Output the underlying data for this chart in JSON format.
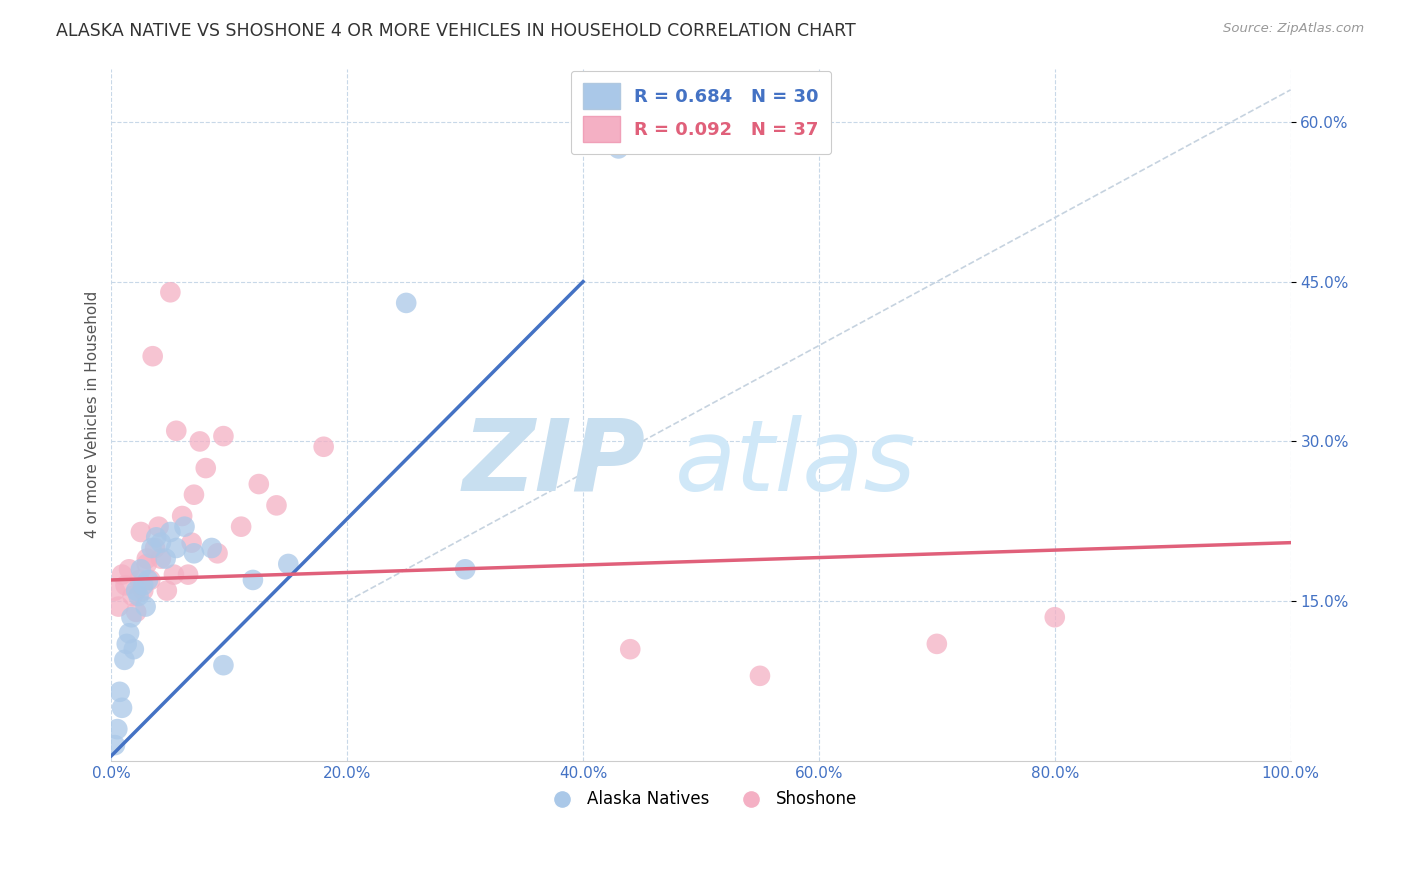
{
  "title": "ALASKA NATIVE VS SHOSHONE 4 OR MORE VEHICLES IN HOUSEHOLD CORRELATION CHART",
  "source_text": "Source: ZipAtlas.com",
  "ylabel": "4 or more Vehicles in Household",
  "xlim": [
    0,
    100
  ],
  "ylim": [
    0,
    65
  ],
  "xtick_values": [
    0,
    20,
    40,
    60,
    80,
    100
  ],
  "xtick_labels": [
    "0.0%",
    "20.0%",
    "40.0%",
    "60.0%",
    "80.0%",
    "100.0%"
  ],
  "ytick_values": [
    15,
    30,
    45,
    60
  ],
  "ytick_labels": [
    "15.0%",
    "30.0%",
    "45.0%",
    "60.0%"
  ],
  "legend_r1": "R = 0.684",
  "legend_n1": "N = 30",
  "legend_r2": "R = 0.092",
  "legend_n2": "N = 37",
  "legend_label1": "Alaska Natives",
  "legend_label2": "Shoshone",
  "color_alaska": "#aac8e8",
  "color_shoshone": "#f4b0c4",
  "color_line_alaska": "#4472c4",
  "color_line_shoshone": "#e0607a",
  "watermark_zip_color": "#c8dff0",
  "watermark_atlas_color": "#d0e8f8",
  "background_color": "#ffffff",
  "grid_color": "#c8d8e8",
  "alaska_x": [
    0.3,
    0.5,
    0.7,
    0.9,
    1.1,
    1.3,
    1.5,
    1.7,
    1.9,
    2.1,
    2.3,
    2.5,
    2.7,
    2.9,
    3.1,
    3.4,
    3.8,
    4.2,
    4.6,
    5.0,
    5.5,
    6.2,
    7.0,
    8.5,
    9.5,
    12.0,
    15.0,
    25.0,
    30.0,
    43.0
  ],
  "alaska_y": [
    1.5,
    3.0,
    6.5,
    5.0,
    9.5,
    11.0,
    12.0,
    13.5,
    10.5,
    16.0,
    15.5,
    18.0,
    16.5,
    14.5,
    17.0,
    20.0,
    21.0,
    20.5,
    19.0,
    21.5,
    20.0,
    22.0,
    19.5,
    20.0,
    9.0,
    17.0,
    18.5,
    43.0,
    18.0,
    57.5
  ],
  "shoshone_x": [
    0.3,
    0.6,
    0.9,
    1.2,
    1.5,
    1.8,
    2.1,
    2.4,
    2.7,
    3.0,
    3.3,
    3.7,
    4.2,
    4.7,
    5.3,
    6.0,
    7.0,
    8.0,
    9.5,
    11.0,
    5.5,
    12.5,
    2.5,
    7.5,
    14.0,
    3.5,
    5.0,
    18.0,
    3.0,
    4.0,
    6.5,
    9.0,
    6.8,
    44.0,
    55.0,
    70.0,
    80.0
  ],
  "shoshone_y": [
    16.0,
    14.5,
    17.5,
    16.5,
    18.0,
    15.5,
    14.0,
    17.0,
    16.0,
    18.5,
    17.0,
    20.0,
    19.0,
    16.0,
    17.5,
    23.0,
    25.0,
    27.5,
    30.5,
    22.0,
    31.0,
    26.0,
    21.5,
    30.0,
    24.0,
    38.0,
    44.0,
    29.5,
    19.0,
    22.0,
    17.5,
    19.5,
    20.5,
    10.5,
    8.0,
    11.0,
    13.5
  ],
  "blue_line_x0": 0,
  "blue_line_y0": 0.5,
  "blue_line_x1": 40,
  "blue_line_y1": 45.0,
  "pink_line_x0": 0,
  "pink_line_y0": 17.0,
  "pink_line_x1": 100,
  "pink_line_y1": 20.5,
  "diag_x0": 20,
  "diag_y0": 15,
  "diag_x1": 100,
  "diag_y1": 63
}
